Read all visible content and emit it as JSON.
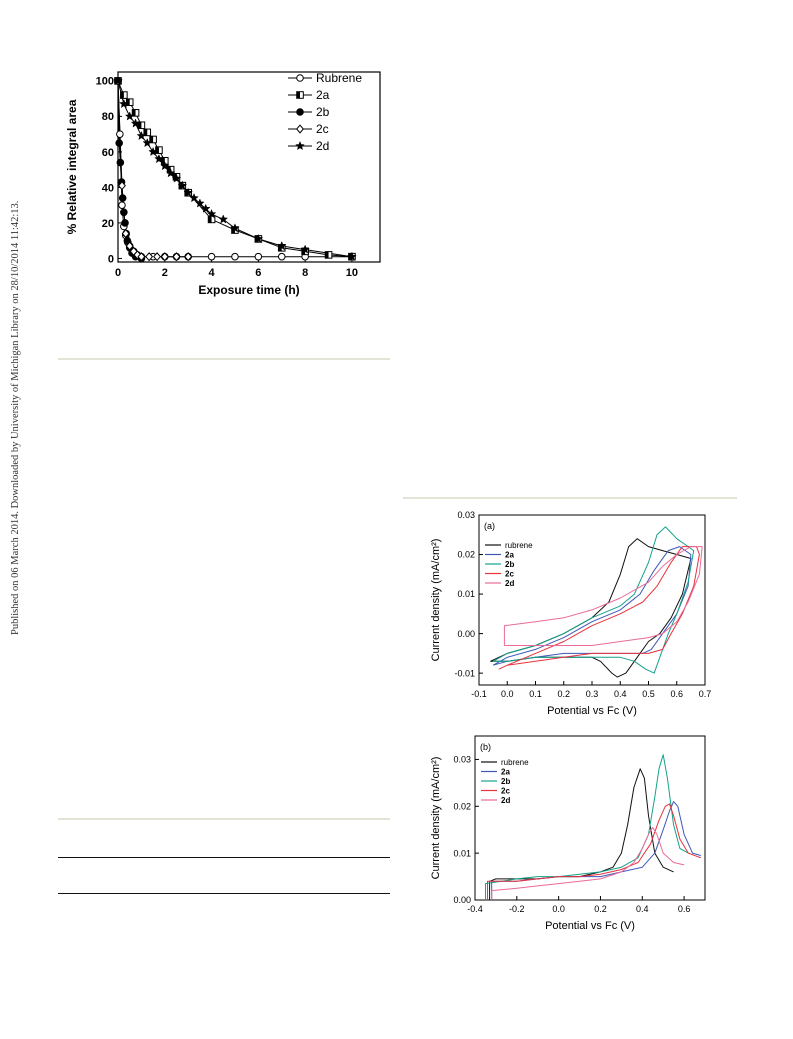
{
  "side_note": "Published on 06 March 2014. Downloaded by University of Michigan Library on 28/10/2014 11:42:13.",
  "colors": {
    "rubrene": "#111111",
    "2a": "#3c57b8",
    "2b": "#14a28a",
    "2c": "#e8323c",
    "2d": "#ea6a9a",
    "rule_light": "#e4e4d6"
  },
  "chart_data": [
    {
      "type": "line",
      "xlabel": "Exposure time (h)",
      "ylabel": "% Relative integral area",
      "xlim": [
        0,
        11.2
      ],
      "ylim": [
        -2,
        105
      ],
      "xticks": [
        "0",
        "2",
        "4",
        "6",
        "8",
        "10"
      ],
      "yticks": [
        "0",
        "20",
        "40",
        "60",
        "80",
        "100"
      ],
      "legend": "top-right",
      "series": [
        {
          "name": "Rubrene",
          "marker": "open-circle",
          "x": [
            0,
            0.08,
            0.17,
            0.25,
            0.33,
            0.42,
            0.5,
            0.67,
            0.83,
            1,
            1.5,
            2,
            2.5,
            3,
            4,
            5,
            6,
            7,
            8,
            10
          ],
          "y": [
            100,
            70,
            30,
            18,
            13,
            9,
            7,
            4,
            2,
            1,
            1,
            1,
            1,
            1,
            1,
            1,
            1,
            1,
            1,
            1
          ]
        },
        {
          "name": "2a",
          "marker": "half-filled-square",
          "x": [
            0,
            0.25,
            0.5,
            0.75,
            1,
            1.25,
            1.5,
            1.75,
            2,
            2.25,
            2.5,
            2.75,
            3,
            4,
            5,
            6,
            7,
            8,
            9,
            10
          ],
          "y": [
            100,
            92,
            88,
            82,
            75,
            71,
            67,
            61,
            55,
            50,
            46,
            41,
            37,
            22,
            16,
            11,
            6,
            4,
            2,
            1
          ]
        },
        {
          "name": "2b",
          "marker": "filled-circle",
          "x": [
            0,
            0.05,
            0.1,
            0.15,
            0.2,
            0.25,
            0.3,
            0.35,
            0.4,
            0.5,
            0.6,
            0.75,
            1
          ],
          "y": [
            100,
            65,
            54,
            43,
            34,
            26,
            20,
            14,
            10,
            6,
            3,
            1,
            0
          ]
        },
        {
          "name": "2c",
          "marker": "open-diamond",
          "x": [
            0,
            0.17,
            0.33,
            0.5,
            0.67,
            0.83,
            1,
            1.33,
            1.67,
            2,
            2.5,
            3
          ],
          "y": [
            100,
            41,
            14,
            7,
            4,
            2,
            1,
            1,
            1,
            1,
            1,
            1
          ]
        },
        {
          "name": "2d",
          "marker": "filled-star",
          "x": [
            0,
            0.25,
            0.5,
            0.75,
            1,
            1.25,
            1.5,
            1.75,
            2,
            2.25,
            2.5,
            2.75,
            3,
            3.25,
            3.5,
            3.75,
            4,
            4.5,
            5,
            6,
            7,
            8,
            10
          ],
          "y": [
            100,
            87,
            80,
            76,
            69,
            65,
            60,
            56,
            52,
            48,
            45,
            41,
            37,
            34,
            31,
            28,
            25,
            22,
            17,
            11,
            7,
            5,
            1
          ]
        }
      ]
    },
    {
      "type": "line",
      "annotation": "(a)",
      "xlabel": "Potential vs Fc (V)",
      "ylabel": "Current density (mA/cm²)",
      "xlim": [
        -0.1,
        0.7
      ],
      "ylim": [
        -0.013,
        0.03
      ],
      "xticks": [
        "-0.1",
        "0.0",
        "0.1",
        "0.2",
        "0.3",
        "0.4",
        "0.5",
        "0.6",
        "0.7"
      ],
      "yticks": [
        "-0.01",
        "0.00",
        "0.01",
        "0.02",
        "0.03"
      ],
      "legend": "top-left",
      "series": [
        {
          "name": "rubrene",
          "x": [
            -0.06,
            0.0,
            0.1,
            0.2,
            0.3,
            0.36,
            0.4,
            0.43,
            0.46,
            0.5,
            0.55,
            0.6,
            0.65,
            0.62,
            0.58,
            0.54,
            0.5,
            0.46,
            0.42,
            0.39,
            0.37,
            0.33,
            0.3,
            0.2,
            0.1,
            0.0,
            -0.06
          ],
          "y": [
            -0.007,
            -0.005,
            -0.003,
            0.0,
            0.004,
            0.008,
            0.015,
            0.022,
            0.024,
            0.022,
            0.021,
            0.02,
            0.019,
            0.01,
            0.004,
            0.0,
            -0.002,
            -0.006,
            -0.01,
            -0.011,
            -0.01,
            -0.007,
            -0.006,
            -0.006,
            -0.006,
            -0.007,
            -0.007
          ]
        },
        {
          "name": "2a",
          "x": [
            -0.05,
            0.0,
            0.1,
            0.2,
            0.3,
            0.4,
            0.47,
            0.52,
            0.57,
            0.61,
            0.65,
            0.64,
            0.6,
            0.55,
            0.51,
            0.48,
            0.42,
            0.3,
            0.2,
            0.1,
            0.0,
            -0.05
          ],
          "y": [
            -0.008,
            -0.006,
            -0.004,
            -0.001,
            0.003,
            0.006,
            0.01,
            0.016,
            0.021,
            0.022,
            0.02,
            0.012,
            0.005,
            0.0,
            -0.004,
            -0.005,
            -0.005,
            -0.005,
            -0.005,
            -0.006,
            -0.007,
            -0.008
          ]
        },
        {
          "name": "2b",
          "x": [
            -0.05,
            0.0,
            0.1,
            0.2,
            0.3,
            0.4,
            0.45,
            0.5,
            0.53,
            0.56,
            0.6,
            0.64,
            0.66,
            0.64,
            0.6,
            0.57,
            0.54,
            0.52,
            0.49,
            0.45,
            0.4,
            0.3,
            0.2,
            0.1,
            0.0,
            -0.05
          ],
          "y": [
            -0.007,
            -0.005,
            -0.003,
            0.0,
            0.004,
            0.007,
            0.01,
            0.018,
            0.025,
            0.027,
            0.024,
            0.022,
            0.021,
            0.013,
            0.005,
            0.0,
            -0.006,
            -0.01,
            -0.009,
            -0.007,
            -0.006,
            -0.006,
            -0.006,
            -0.006,
            -0.007,
            -0.007
          ]
        },
        {
          "name": "2c",
          "x": [
            -0.03,
            0.0,
            0.1,
            0.2,
            0.3,
            0.4,
            0.48,
            0.53,
            0.58,
            0.62,
            0.67,
            0.68,
            0.66,
            0.62,
            0.58,
            0.55,
            0.5,
            0.4,
            0.3,
            0.2,
            0.1,
            0.0,
            -0.03
          ],
          "y": [
            -0.009,
            -0.008,
            -0.005,
            -0.002,
            0.002,
            0.005,
            0.008,
            0.012,
            0.018,
            0.022,
            0.022,
            0.02,
            0.012,
            0.005,
            0.0,
            -0.004,
            -0.005,
            -0.005,
            -0.005,
            -0.006,
            -0.007,
            -0.008,
            -0.009
          ]
        },
        {
          "name": "2d",
          "x": [
            -0.01,
            -0.01,
            0.1,
            0.2,
            0.3,
            0.4,
            0.5,
            0.55,
            0.6,
            0.65,
            0.69,
            0.68,
            0.64,
            0.6,
            0.55,
            0.5,
            0.4,
            0.3,
            0.2,
            0.1,
            0.0,
            -0.01
          ],
          "y": [
            -0.003,
            0.002,
            0.003,
            0.004,
            0.006,
            0.009,
            0.013,
            0.017,
            0.02,
            0.022,
            0.022,
            0.015,
            0.008,
            0.003,
            0.0,
            -0.001,
            -0.002,
            -0.003,
            -0.003,
            -0.003,
            -0.003,
            -0.003
          ]
        }
      ]
    },
    {
      "type": "line",
      "annotation": "(b)",
      "xlabel": "Potential vs Fc (V)",
      "ylabel": "Current density (mA/cm²)",
      "xlim": [
        -0.4,
        0.7
      ],
      "ylim": [
        0.0,
        0.035
      ],
      "xticks": [
        "-0.4",
        "-0.2",
        "0.0",
        "0.2",
        "0.4",
        "0.6"
      ],
      "yticks": [
        "0.00",
        "0.01",
        "0.02",
        "0.03"
      ],
      "legend": "top-left",
      "series": [
        {
          "name": "rubrene",
          "x": [
            -0.33,
            -0.33,
            -0.3,
            -0.2,
            -0.1,
            0.0,
            0.1,
            0.2,
            0.26,
            0.3,
            0.33,
            0.36,
            0.39,
            0.41,
            0.43,
            0.46,
            0.5,
            0.55
          ],
          "y": [
            0.0,
            0.004,
            0.0045,
            0.0045,
            0.0045,
            0.005,
            0.005,
            0.006,
            0.007,
            0.01,
            0.016,
            0.024,
            0.028,
            0.026,
            0.018,
            0.01,
            0.007,
            0.006
          ]
        },
        {
          "name": "2a",
          "x": [
            -0.32,
            -0.32,
            -0.2,
            -0.1,
            0.0,
            0.1,
            0.2,
            0.3,
            0.4,
            0.46,
            0.5,
            0.53,
            0.55,
            0.57,
            0.6,
            0.64,
            0.68
          ],
          "y": [
            0.0,
            0.004,
            0.004,
            0.0045,
            0.005,
            0.005,
            0.005,
            0.006,
            0.007,
            0.01,
            0.015,
            0.019,
            0.021,
            0.02,
            0.014,
            0.01,
            0.0095
          ]
        },
        {
          "name": "2b",
          "x": [
            -0.35,
            -0.35,
            -0.2,
            -0.1,
            0.0,
            0.1,
            0.2,
            0.3,
            0.38,
            0.43,
            0.46,
            0.48,
            0.5,
            0.52,
            0.55,
            0.58,
            0.62
          ],
          "y": [
            0.0,
            0.0035,
            0.0045,
            0.005,
            0.005,
            0.0055,
            0.006,
            0.007,
            0.009,
            0.014,
            0.022,
            0.028,
            0.031,
            0.026,
            0.016,
            0.011,
            0.01
          ]
        },
        {
          "name": "2c",
          "x": [
            -0.34,
            -0.34,
            -0.2,
            -0.1,
            0.0,
            0.1,
            0.2,
            0.3,
            0.38,
            0.44,
            0.48,
            0.51,
            0.53,
            0.55,
            0.58,
            0.62,
            0.68
          ],
          "y": [
            0.0,
            0.004,
            0.004,
            0.0045,
            0.005,
            0.005,
            0.0055,
            0.0065,
            0.008,
            0.012,
            0.017,
            0.02,
            0.0205,
            0.018,
            0.013,
            0.01,
            0.009
          ]
        },
        {
          "name": "2d",
          "x": [
            -0.32,
            -0.32,
            -0.2,
            -0.1,
            0.0,
            0.1,
            0.2,
            0.3,
            0.36,
            0.4,
            0.43,
            0.45,
            0.47,
            0.5,
            0.55,
            0.6
          ],
          "y": [
            0.0,
            0.002,
            0.0025,
            0.003,
            0.0035,
            0.004,
            0.0045,
            0.006,
            0.008,
            0.011,
            0.014,
            0.0155,
            0.014,
            0.01,
            0.008,
            0.0075
          ]
        }
      ]
    }
  ]
}
